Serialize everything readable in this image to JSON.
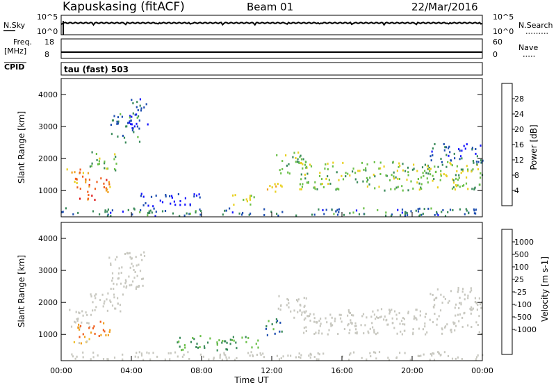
{
  "header": {
    "site": "Kapuskasing (fitACF)",
    "beam": "Beam 01",
    "date": "22/Mar/2016"
  },
  "strips": {
    "nsky_label": "N.Sky",
    "nsky_ticks": [
      "10^5",
      "10^0"
    ],
    "nsearch_label": "N.Search",
    "nsearch_ticks": [
      "10^5",
      "10^0"
    ],
    "freq_label_1": "Freq.",
    "freq_label_2": "[MHz]",
    "freq_ticks": [
      "18",
      "8"
    ],
    "nave_label": "Nave",
    "nave_ticks": [
      "60",
      "0"
    ],
    "cpid_label": "CPID",
    "cpid_value": "tau (fast) 503"
  },
  "colors": {
    "power": [
      "#1a1aff",
      "#2050b0",
      "#3a8a5a",
      "#6cc04a",
      "#e8d020",
      "#f0a020",
      "#f06020",
      "#e01818"
    ],
    "velocity": [
      "#e01818",
      "#f06020",
      "#f0a020",
      "#f0c030",
      "#c8c8c0",
      "#c8c8c0",
      "#6cc04a",
      "#3a8a5a",
      "#2050b0",
      "#2040c0"
    ]
  },
  "chart_data": [
    {
      "type": "heatmap",
      "title": "Power",
      "ylabel": "Slant Range [km]",
      "xlabel": "",
      "ylim": [
        180,
        4500
      ],
      "y_ticks": [
        "1000",
        "2000",
        "3000",
        "4000"
      ],
      "colorbar_label": "Power [dB]",
      "colorbar_ticks": [
        "4",
        "8",
        "12",
        "16",
        "20",
        "24",
        "28"
      ],
      "regions": [
        {
          "t0": 0.3,
          "t1": 1.6,
          "r0": 1200,
          "r1": 1700,
          "level": 0.65
        },
        {
          "t0": 1.6,
          "t1": 3.2,
          "r0": 1600,
          "r1": 2200,
          "level": 0.4
        },
        {
          "t0": 2.8,
          "t1": 4.5,
          "r0": 2500,
          "r1": 3400,
          "level": 0.25
        },
        {
          "t0": 3.8,
          "t1": 4.9,
          "r0": 3000,
          "r1": 3900,
          "level": 0.15
        },
        {
          "t0": 0.6,
          "t1": 2.8,
          "r0": 950,
          "r1": 1400,
          "level": 0.75
        },
        {
          "t0": 0.7,
          "t1": 2.0,
          "r0": 700,
          "r1": 900,
          "level": 0.85
        },
        {
          "t0": 4.5,
          "t1": 8.0,
          "r0": 500,
          "r1": 900,
          "level": 0.1
        },
        {
          "t0": 9.5,
          "t1": 11.0,
          "r0": 550,
          "r1": 900,
          "level": 0.5
        },
        {
          "t0": 11.6,
          "t1": 12.6,
          "r0": 900,
          "r1": 1300,
          "level": 0.6
        },
        {
          "t0": 12.2,
          "t1": 14.0,
          "r0": 1500,
          "r1": 2200,
          "level": 0.45
        },
        {
          "t0": 13.5,
          "t1": 24.0,
          "r0": 1000,
          "r1": 1900,
          "level": 0.45
        },
        {
          "t0": 21.0,
          "t1": 24.0,
          "r0": 1800,
          "r1": 2500,
          "level": 0.2
        },
        {
          "t0": 0.0,
          "t1": 24.0,
          "r0": 200,
          "r1": 450,
          "level": 0.25
        }
      ]
    },
    {
      "type": "heatmap",
      "title": "Velocity",
      "ylabel": "Slant Range [km]",
      "xlabel": "Time UT",
      "x_ticks": [
        "00:00",
        "04:00",
        "08:00",
        "12:00",
        "16:00",
        "20:00",
        "00:00"
      ],
      "ylim": [
        180,
        4500
      ],
      "y_ticks": [
        "1000",
        "2000",
        "3000",
        "4000"
      ],
      "colorbar_label": "Velocity [m s-1]",
      "colorbar_ticks": [
        "1000",
        "500",
        "100",
        "25",
        "-25",
        "-100",
        "-500",
        "-1000"
      ],
      "regions": [
        {
          "t0": 0.3,
          "t1": 1.8,
          "r0": 1200,
          "r1": 1800,
          "level": 0.5
        },
        {
          "t0": 1.6,
          "t1": 3.5,
          "r0": 1600,
          "r1": 2300,
          "level": 0.5
        },
        {
          "t0": 2.6,
          "t1": 4.8,
          "r0": 2400,
          "r1": 3600,
          "level": 0.5
        },
        {
          "t0": 0.6,
          "t1": 2.8,
          "r0": 900,
          "r1": 1400,
          "level": 0.2
        },
        {
          "t0": 0.7,
          "t1": 2.0,
          "r0": 700,
          "r1": 900,
          "level": 0.35
        },
        {
          "t0": 6.5,
          "t1": 11.2,
          "r0": 500,
          "r1": 950,
          "level": 0.7
        },
        {
          "t0": 11.6,
          "t1": 12.6,
          "r0": 900,
          "r1": 1500,
          "level": 0.75
        },
        {
          "t0": 12.2,
          "t1": 14.0,
          "r0": 1500,
          "r1": 2200,
          "level": 0.5
        },
        {
          "t0": 13.5,
          "t1": 24.0,
          "r0": 1000,
          "r1": 1800,
          "level": 0.5
        },
        {
          "t0": 21.0,
          "t1": 24.0,
          "r0": 1800,
          "r1": 2500,
          "level": 0.5
        },
        {
          "t0": 0.0,
          "t1": 24.0,
          "r0": 200,
          "r1": 450,
          "level": 0.5
        }
      ]
    }
  ]
}
